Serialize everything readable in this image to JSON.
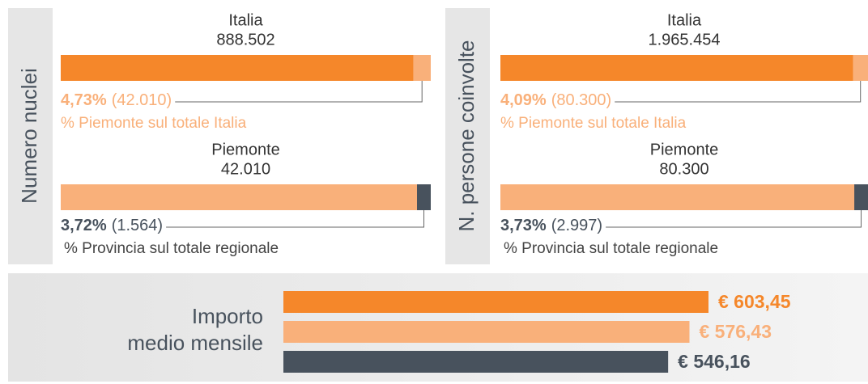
{
  "panels": [
    {
      "axis_label": "Numero nuclei",
      "top": {
        "title": "Italia",
        "total": {
          "value": 888502,
          "label": "888.502"
        },
        "share": {
          "value": 4.73,
          "label": "4,73%"
        },
        "part": {
          "value": 42010,
          "label": "(42.010)"
        },
        "note": "% Piemonte sul totale Italia"
      },
      "bottom": {
        "title": "Piemonte",
        "total": {
          "value": 42010,
          "label": "42.010"
        },
        "share": {
          "value": 3.72,
          "label": "3,72%"
        },
        "part": {
          "value": 1564,
          "label": "(1.564)"
        },
        "note": "% Provincia sul totale regionale"
      }
    },
    {
      "axis_label": "N. persone coinvolte",
      "top": {
        "title": "Italia",
        "total": {
          "value": 1965454,
          "label": "1.965.454"
        },
        "share": {
          "value": 4.09,
          "label": "4,09%"
        },
        "part": {
          "value": 80300,
          "label": "(80.300)"
        },
        "note": "% Piemonte sul totale Italia"
      },
      "bottom": {
        "title": "Piemonte",
        "total": {
          "value": 80300,
          "label": "80.300"
        },
        "share": {
          "value": 3.73,
          "label": "3,73%"
        },
        "part": {
          "value": 2997,
          "label": "(2.997)"
        },
        "note": "% Provincia sul totale regionale"
      }
    }
  ],
  "monthly": {
    "label": [
      "Importo",
      "medio mensile"
    ],
    "bars": [
      {
        "value": 603.45,
        "label": "€ 603,45",
        "color": "#f5872a"
      },
      {
        "value": 576.43,
        "label": "€ 576,43",
        "color": "#f9b07a"
      },
      {
        "value": 546.16,
        "label": "€ 546,16",
        "color": "#48525d"
      }
    ]
  }
}
